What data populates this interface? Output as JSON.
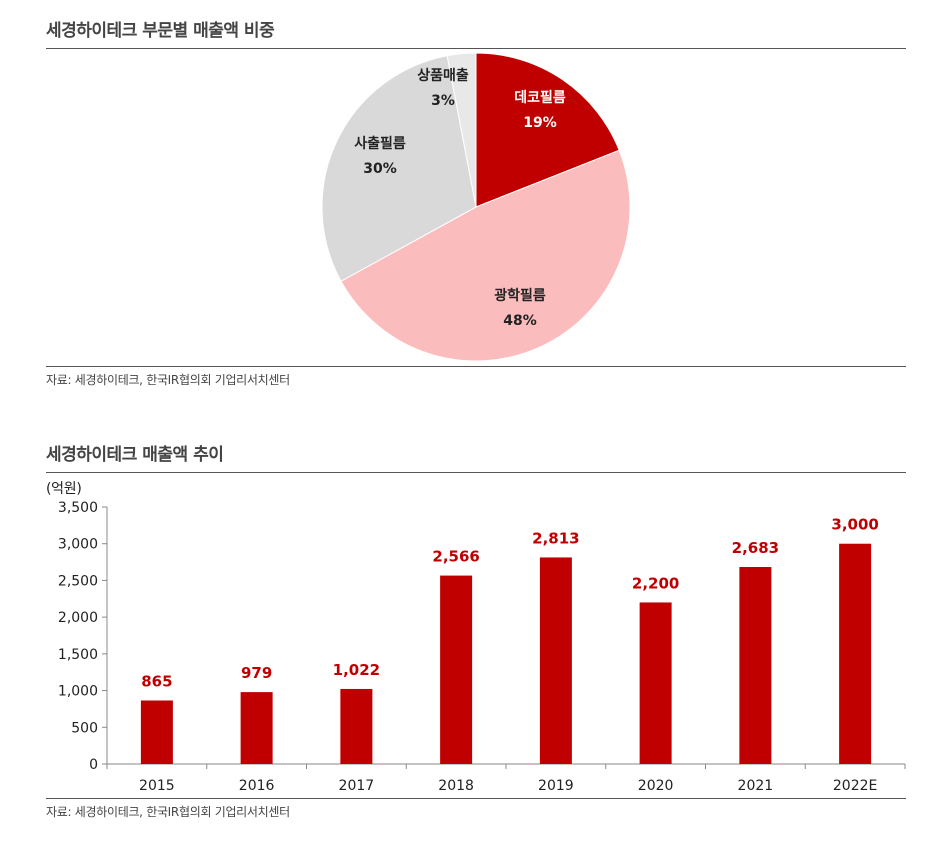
{
  "pie_section": {
    "title": "세경하이테크 부문별 매출액 비중",
    "source": "자료: 세경하이테크, 한국IR협의회 기업리서치센터"
  },
  "bar_section": {
    "title": "세경하이테크 매출액 추이",
    "unit": "(억원)",
    "source": "자료: 세경하이테크, 한국IR협의회 기업리서치센터"
  },
  "chart_data": [
    {
      "type": "pie",
      "title": "세경하이테크 부문별 매출액 비중",
      "slices": [
        {
          "label": "데코필름",
          "value": 19,
          "value_label": "19%",
          "color": "#c00000",
          "text_color": "#ffffff"
        },
        {
          "label": "광학필름",
          "value": 48,
          "value_label": "48%",
          "color": "#fbbcbd",
          "text_color": "#222222"
        },
        {
          "label": "사출필름",
          "value": 30,
          "value_label": "30%",
          "color": "#d9d9d9",
          "text_color": "#222222"
        },
        {
          "label": "상품매출",
          "value": 3,
          "value_label": "3%",
          "color": "#e8e8e8",
          "text_color": "#222222"
        }
      ]
    },
    {
      "type": "bar",
      "title": "세경하이테크 매출액 추이",
      "ylabel": "(억원)",
      "categories": [
        "2015",
        "2016",
        "2017",
        "2018",
        "2019",
        "2020",
        "2021",
        "2022E"
      ],
      "values": [
        865,
        979,
        1022,
        2566,
        2813,
        2200,
        2683,
        3000
      ],
      "value_labels": [
        "865",
        "979",
        "1,022",
        "2,566",
        "2,813",
        "2,200",
        "2,683",
        "3,000"
      ],
      "ylim": [
        0,
        3500
      ],
      "yticks": [
        0,
        500,
        1000,
        1500,
        2000,
        2500,
        3000,
        3500
      ],
      "ytick_labels": [
        "0",
        "500",
        "1,000",
        "1,500",
        "2,000",
        "2,500",
        "3,000",
        "3,500"
      ],
      "bar_color": "#c00000",
      "grid": false
    }
  ]
}
